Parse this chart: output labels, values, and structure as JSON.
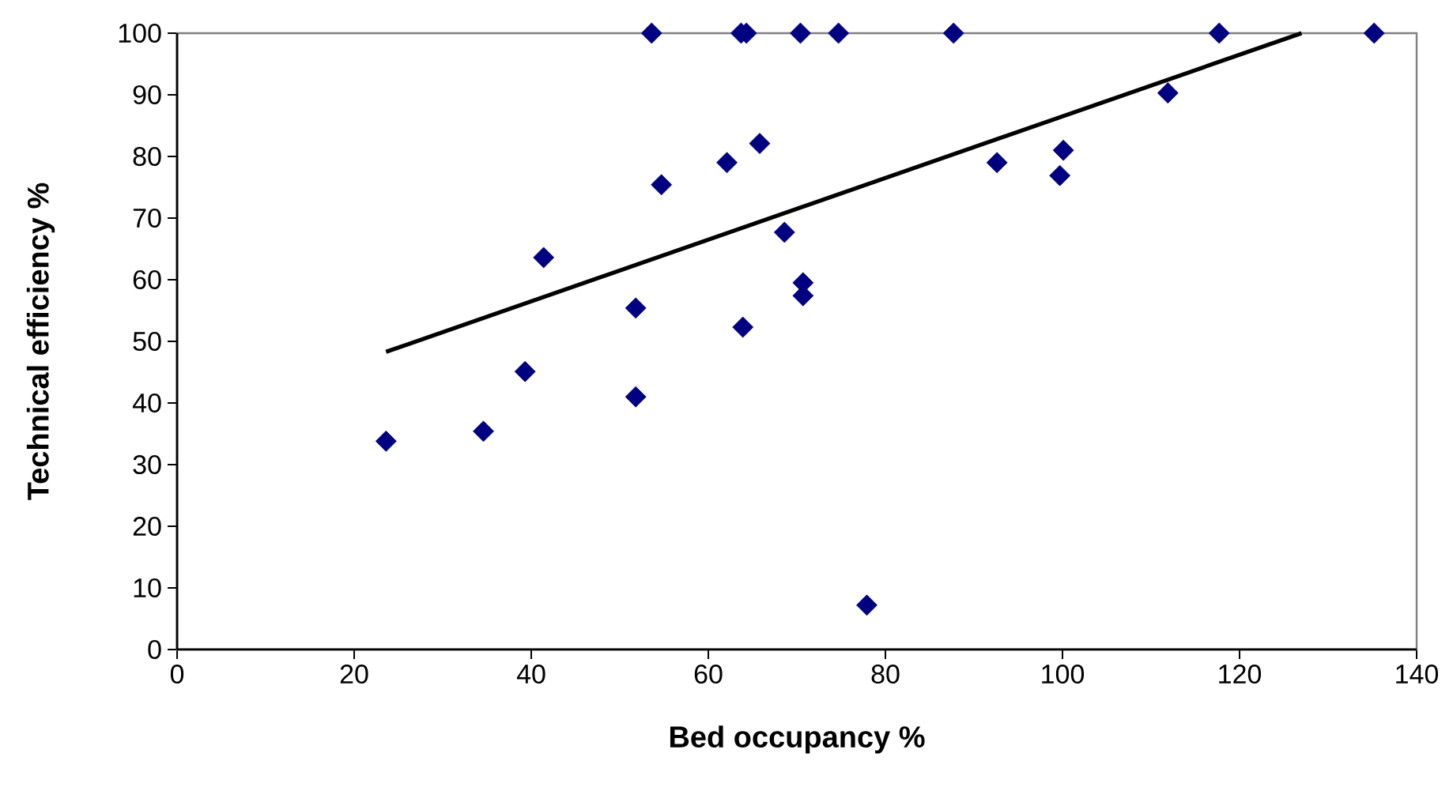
{
  "chart_data": {
    "type": "scatter",
    "xlabel": "Bed occupancy %",
    "ylabel": "Technical efficiency %",
    "xlim": [
      0,
      140
    ],
    "ylim": [
      0,
      100
    ],
    "xticks": [
      0,
      20,
      40,
      60,
      80,
      100,
      120,
      140
    ],
    "yticks": [
      0,
      10,
      20,
      30,
      40,
      50,
      60,
      70,
      80,
      90,
      100
    ],
    "grid": false,
    "marker": "diamond",
    "series": [
      {
        "color": "#000080",
        "x": [
          23.6,
          34.6,
          39.3,
          41.4,
          51.8,
          51.8,
          53.6,
          54.7,
          62.1,
          63.7,
          63.9,
          64.3,
          65.8,
          68.6,
          70.4,
          70.7,
          70.7,
          74.7,
          77.9,
          87.7,
          92.6,
          99.7,
          100.1,
          111.9,
          117.7,
          135.2
        ],
        "values": [
          33.8,
          35.4,
          45.1,
          63.6,
          55.4,
          41.0,
          100,
          75.4,
          79.0,
          100,
          52.3,
          100,
          82.1,
          67.7,
          100,
          59.5,
          57.4,
          100,
          7.2,
          100,
          79.0,
          76.9,
          81.0,
          90.3,
          100,
          100
        ]
      },
      {
        "type": "line",
        "color": "#000000",
        "marker": "none",
        "line_style": "solid",
        "x": [
          23.6,
          127.0
        ],
        "values": [
          48.3,
          100
        ]
      }
    ]
  }
}
